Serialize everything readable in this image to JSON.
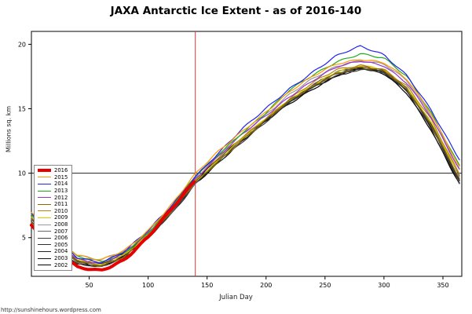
{
  "title": "JAXA Antarctic Ice Extent - as of 2016-140",
  "footer_link": "http://sunshinehours.wordpress.com",
  "chart_data": {
    "type": "line",
    "title": "JAXA Antarctic Ice Extent - as of 2016-140",
    "xlabel": "Julian Day",
    "ylabel": "Millions sq. km",
    "xlim": [
      1,
      366
    ],
    "ylim": [
      2,
      21
    ],
    "x_ticks": [
      50,
      100,
      150,
      200,
      250,
      300,
      350
    ],
    "y_ticks": [
      5,
      10,
      15,
      20
    ],
    "grid": false,
    "legend_position": "bottom-left",
    "reference_lines": {
      "vertical_day": 140,
      "vertical_color": "#cc3b3b",
      "horizontal_value": 10,
      "horizontal_color": "#222222"
    },
    "x": [
      1,
      20,
      40,
      60,
      80,
      100,
      120,
      140,
      160,
      180,
      200,
      220,
      240,
      260,
      280,
      300,
      320,
      340,
      360,
      365
    ],
    "series": [
      {
        "name": "2016",
        "color": "#e60000",
        "width": 4,
        "values": [
          5.9,
          4.1,
          2.7,
          2.5,
          3.3,
          5.0,
          7.2,
          9.5
        ]
      },
      {
        "name": "2015",
        "color": "#ff9900",
        "width": 1.2,
        "values": [
          7.0,
          5.2,
          3.6,
          3.2,
          4.0,
          5.6,
          7.6,
          9.9,
          11.7,
          13.3,
          14.8,
          16.3,
          17.5,
          18.5,
          18.9,
          18.6,
          17.2,
          14.6,
          11.2,
          10.4
        ]
      },
      {
        "name": "2014",
        "color": "#2222ee",
        "width": 1.2,
        "values": [
          6.9,
          5.0,
          3.5,
          3.1,
          3.9,
          5.5,
          7.5,
          9.8,
          11.6,
          13.4,
          15.0,
          16.6,
          17.9,
          19.1,
          19.8,
          19.2,
          17.6,
          14.9,
          11.6,
          10.9
        ]
      },
      {
        "name": "2013",
        "color": "#22aa22",
        "width": 1.2,
        "values": [
          6.8,
          5.0,
          3.5,
          3.1,
          3.9,
          5.4,
          7.4,
          9.7,
          11.5,
          13.2,
          14.7,
          16.4,
          17.6,
          18.7,
          19.3,
          18.9,
          17.4,
          14.7,
          11.3,
          10.5
        ]
      },
      {
        "name": "2012",
        "color": "#9933cc",
        "width": 1.2,
        "values": [
          6.7,
          4.9,
          3.4,
          3.0,
          3.8,
          5.3,
          7.3,
          9.6,
          11.3,
          13.0,
          14.5,
          16.0,
          17.2,
          18.2,
          18.7,
          18.4,
          17.0,
          14.3,
          10.9,
          10.1
        ]
      },
      {
        "name": "2011",
        "color": "#886600",
        "width": 1.2,
        "values": [
          6.3,
          4.5,
          3.1,
          2.8,
          3.6,
          5.1,
          7.0,
          9.3,
          11.0,
          12.6,
          14.1,
          15.6,
          16.8,
          17.8,
          18.2,
          17.9,
          16.5,
          13.8,
          10.3,
          9.5
        ]
      },
      {
        "name": "2010",
        "color": "#b8860b",
        "width": 1.2,
        "values": [
          6.6,
          4.8,
          3.3,
          3.0,
          3.8,
          5.3,
          7.2,
          9.5,
          11.2,
          12.8,
          14.3,
          15.8,
          17.0,
          18.0,
          18.4,
          18.1,
          16.7,
          14.1,
          10.6,
          9.8
        ]
      },
      {
        "name": "2009",
        "color": "#ddcc00",
        "width": 1.2,
        "values": [
          6.5,
          4.7,
          3.3,
          2.9,
          3.7,
          5.2,
          7.1,
          9.4,
          11.1,
          12.7,
          14.2,
          15.7,
          16.9,
          17.9,
          18.3,
          18.0,
          16.6,
          14.0,
          10.5,
          9.7
        ]
      },
      {
        "name": "2008",
        "color": "#999999",
        "width": 1.2,
        "values": [
          6.9,
          5.1,
          3.6,
          3.2,
          4.0,
          5.5,
          7.4,
          9.7,
          11.4,
          13.1,
          14.6,
          16.1,
          17.3,
          18.3,
          18.8,
          18.5,
          17.1,
          14.4,
          11.0,
          10.2
        ]
      },
      {
        "name": "2007",
        "color": "#666666",
        "width": 1.2,
        "values": [
          6.4,
          4.6,
          3.2,
          2.9,
          3.7,
          5.2,
          7.0,
          9.3,
          11.1,
          12.7,
          14.2,
          15.7,
          16.9,
          17.8,
          18.3,
          18.0,
          16.6,
          13.9,
          10.4,
          9.6
        ]
      },
      {
        "name": "2006",
        "color": "#3c3c3c",
        "width": 1.2,
        "values": [
          6.0,
          4.2,
          2.9,
          2.7,
          3.5,
          5.0,
          6.9,
          9.2,
          10.9,
          12.5,
          14.0,
          15.5,
          16.7,
          17.7,
          18.1,
          17.8,
          16.4,
          13.7,
          10.1,
          9.3
        ]
      },
      {
        "name": "2005",
        "color": "#2e2e2e",
        "width": 1.2,
        "values": [
          6.2,
          4.4,
          3.0,
          2.8,
          3.6,
          5.1,
          6.9,
          9.2,
          11.0,
          12.6,
          14.1,
          15.6,
          16.7,
          17.7,
          18.2,
          17.9,
          16.4,
          13.6,
          10.0,
          9.2
        ]
      },
      {
        "name": "2004",
        "color": "#222222",
        "width": 1.2,
        "values": [
          6.3,
          4.5,
          3.1,
          2.8,
          3.6,
          5.1,
          7.0,
          9.3,
          11.0,
          12.6,
          14.1,
          15.5,
          16.7,
          17.6,
          18.1,
          17.8,
          16.3,
          13.5,
          9.9,
          9.1
        ]
      },
      {
        "name": "2003",
        "color": "#141414",
        "width": 1.2,
        "values": [
          6.5,
          4.7,
          3.2,
          2.9,
          3.7,
          5.2,
          7.1,
          9.4,
          11.1,
          12.7,
          14.2,
          15.6,
          16.8,
          17.8,
          18.3,
          18.0,
          16.5,
          13.7,
          10.1,
          9.3
        ]
      },
      {
        "name": "2002",
        "color": "#000000",
        "width": 1.2,
        "values": [
          6.4,
          4.6,
          3.1,
          2.8,
          3.6,
          5.1,
          7.0,
          9.2,
          10.9,
          12.5,
          14.0,
          15.4,
          16.6,
          17.6,
          18.1,
          17.7,
          16.2,
          13.4,
          9.8,
          9.0
        ]
      }
    ]
  }
}
